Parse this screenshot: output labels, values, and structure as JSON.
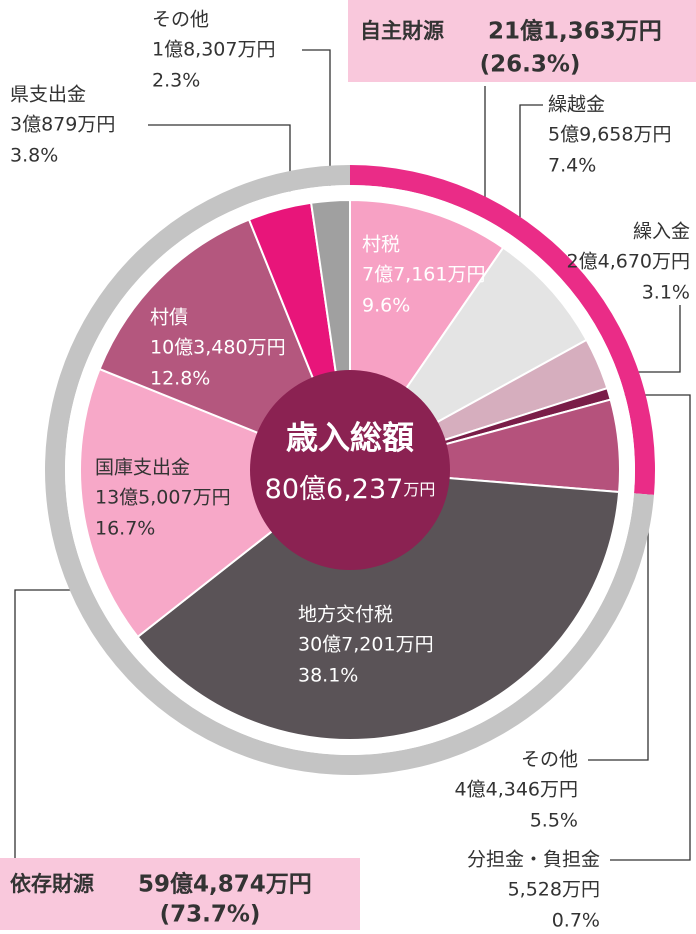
{
  "chart_data": {
    "type": "pie",
    "title": "歳入総額",
    "total_amount": "80億6,237",
    "total_unit": "万円",
    "categories": [
      "村税",
      "繰越金",
      "繰入金",
      "分担金・負担金",
      "その他",
      "地方交付税",
      "国庫支出金",
      "村債",
      "県支出金",
      "その他"
    ],
    "amounts": [
      "7億7,161万円",
      "5億9,658万円",
      "2億4,670万円",
      "5,528万円",
      "4億4,346万円",
      "30億7,201万円",
      "13億5,007万円",
      "10億3,480万円",
      "3億879万円",
      "1億8,307万円"
    ],
    "values": [
      9.6,
      7.4,
      3.1,
      0.7,
      5.5,
      38.1,
      16.7,
      12.8,
      3.8,
      2.3
    ],
    "value_labels": [
      "9.6%",
      "7.4%",
      "3.1%",
      "0.7%",
      "5.5%",
      "38.1%",
      "16.7%",
      "12.8%",
      "3.8%",
      "2.3%"
    ],
    "colors": [
      "#f7a1c4",
      "#e4e4e4",
      "#d6aebe",
      "#7a1d48",
      "#b5527c",
      "#5a5357",
      "#f7a8c8",
      "#b4577e",
      "#e8157a",
      "#a0a0a0"
    ],
    "groups": [
      {
        "name": "自主財源",
        "amount": "21億1,363万円",
        "value": 26.3,
        "value_label": "(26.3%)",
        "color": "#ea2c87"
      },
      {
        "name": "依存財源",
        "amount": "59億4,874万円",
        "value": 73.7,
        "value_label": "(73.7%)",
        "color": "#c4c4c4"
      }
    ]
  }
}
